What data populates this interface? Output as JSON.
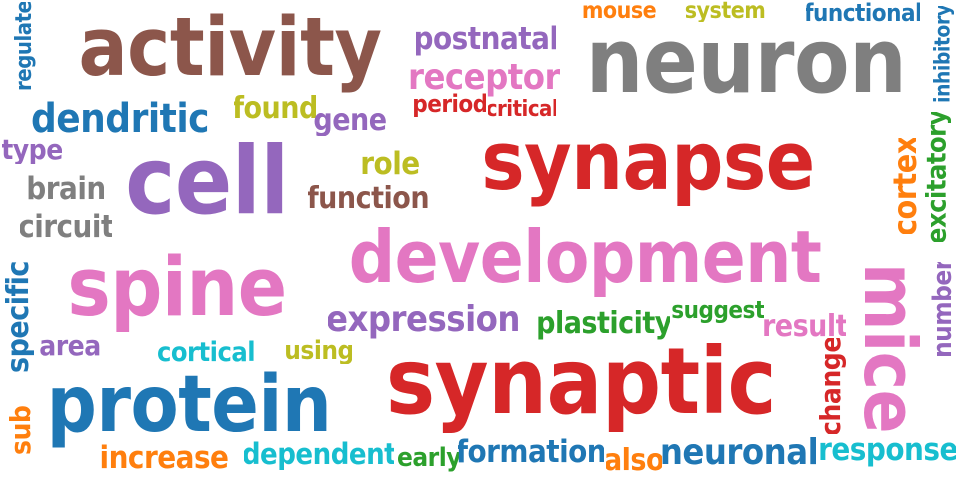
{
  "words": [
    {
      "id": "activity",
      "text": "activity",
      "color": "#8c564b"
    },
    {
      "id": "neuron",
      "text": "neuron",
      "color": "#7f7f7f"
    },
    {
      "id": "synapse",
      "text": "synapse",
      "color": "#d62728"
    },
    {
      "id": "synaptic",
      "text": "synaptic",
      "color": "#d62728"
    },
    {
      "id": "development",
      "text": "development",
      "color": "#e377c2"
    },
    {
      "id": "spine",
      "text": "spine",
      "color": "#e377c2"
    },
    {
      "id": "cell",
      "text": "cell",
      "color": "#9467bd"
    },
    {
      "id": "protein",
      "text": "protein",
      "color": "#1f77b4"
    },
    {
      "id": "mice",
      "text": "mice",
      "color": "#e377c2"
    },
    {
      "id": "dendritic",
      "text": "dendritic",
      "color": "#1f77b4"
    },
    {
      "id": "postnatal",
      "text": "postnatal",
      "color": "#9467bd"
    },
    {
      "id": "receptor",
      "text": "receptor",
      "color": "#e377c2"
    },
    {
      "id": "mouse",
      "text": "mouse",
      "color": "#ff7f0e"
    },
    {
      "id": "system",
      "text": "system",
      "color": "#bcbd22"
    },
    {
      "id": "functional",
      "text": "functional",
      "color": "#1f77b4"
    },
    {
      "id": "inhibitory",
      "text": "inhibitory",
      "color": "#1f77b4"
    },
    {
      "id": "regulate",
      "text": "regulate",
      "color": "#1f77b4"
    },
    {
      "id": "found",
      "text": "found",
      "color": "#bcbd22"
    },
    {
      "id": "gene",
      "text": "gene",
      "color": "#9467bd"
    },
    {
      "id": "period",
      "text": "period",
      "color": "#d62728"
    },
    {
      "id": "critical",
      "text": "critical",
      "color": "#d62728"
    },
    {
      "id": "type",
      "text": "type",
      "color": "#9467bd"
    },
    {
      "id": "brain",
      "text": "brain",
      "color": "#7f7f7f"
    },
    {
      "id": "circuit",
      "text": "circuit",
      "color": "#7f7f7f"
    },
    {
      "id": "role",
      "text": "role",
      "color": "#bcbd22"
    },
    {
      "id": "function",
      "text": "function",
      "color": "#8c564b"
    },
    {
      "id": "cortex",
      "text": "cortex",
      "color": "#ff7f0e"
    },
    {
      "id": "excitatory",
      "text": "excitatory",
      "color": "#2ca02c"
    },
    {
      "id": "number",
      "text": "number",
      "color": "#9467bd"
    },
    {
      "id": "specific",
      "text": "specific",
      "color": "#1f77b4"
    },
    {
      "id": "area",
      "text": "area",
      "color": "#9467bd"
    },
    {
      "id": "expression",
      "text": "expression",
      "color": "#9467bd"
    },
    {
      "id": "plasticity",
      "text": "plasticity",
      "color": "#2ca02c"
    },
    {
      "id": "suggest",
      "text": "suggest",
      "color": "#2ca02c"
    },
    {
      "id": "result",
      "text": "result",
      "color": "#e377c2"
    },
    {
      "id": "cortical",
      "text": "cortical",
      "color": "#17becf"
    },
    {
      "id": "using",
      "text": "using",
      "color": "#bcbd22"
    },
    {
      "id": "change",
      "text": "change",
      "color": "#d62728"
    },
    {
      "id": "sub",
      "text": "sub",
      "color": "#ff7f0e"
    },
    {
      "id": "increase",
      "text": "increase",
      "color": "#ff7f0e"
    },
    {
      "id": "dependent",
      "text": "dependent",
      "color": "#17becf"
    },
    {
      "id": "early",
      "text": "early",
      "color": "#2ca02c"
    },
    {
      "id": "formation",
      "text": "formation",
      "color": "#1f77b4"
    },
    {
      "id": "also",
      "text": "also",
      "color": "#ff7f0e"
    },
    {
      "id": "neuronal",
      "text": "neuronal",
      "color": "#1f77b4"
    },
    {
      "id": "response",
      "text": "response",
      "color": "#17becf"
    }
  ]
}
